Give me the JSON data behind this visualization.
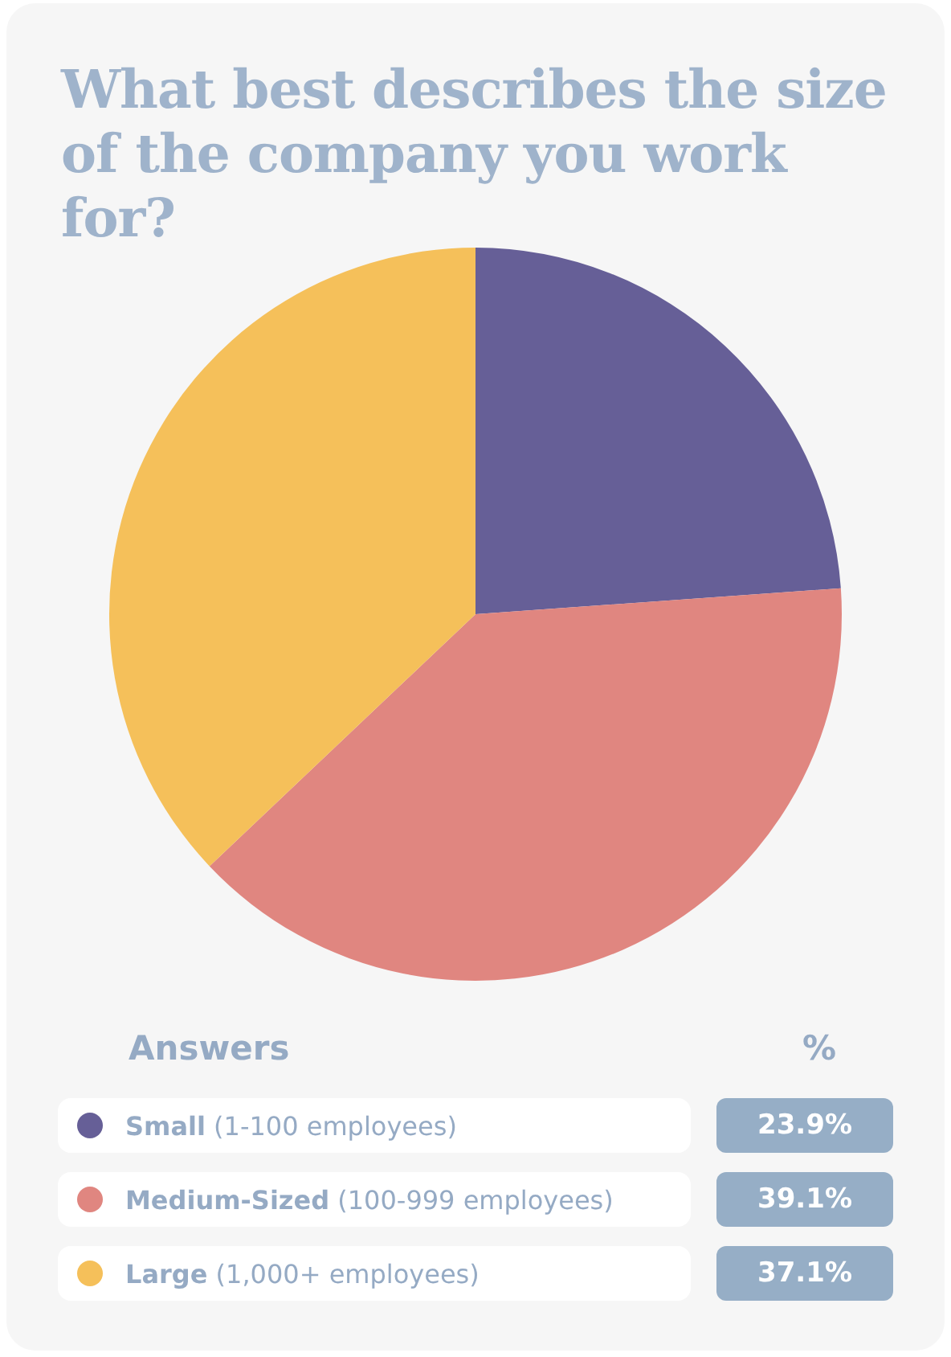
{
  "chart_data": {
    "type": "pie",
    "title": "What best describes the size of the company you work for?",
    "legend_title": "Answers",
    "annotations": [
      "%"
    ],
    "categories": [
      "Small (1-100 employees)",
      "Medium-Sized (100-999 employees)",
      "Large (1,000+ employees)"
    ],
    "values": [
      23.9,
      39.1,
      37.1
    ],
    "value_labels": [
      "23.9%",
      "39.1%",
      "37.1%"
    ],
    "colors": [
      "#665f97",
      "#e08680",
      "#f5c05a"
    ],
    "legend": "bottom"
  }
}
